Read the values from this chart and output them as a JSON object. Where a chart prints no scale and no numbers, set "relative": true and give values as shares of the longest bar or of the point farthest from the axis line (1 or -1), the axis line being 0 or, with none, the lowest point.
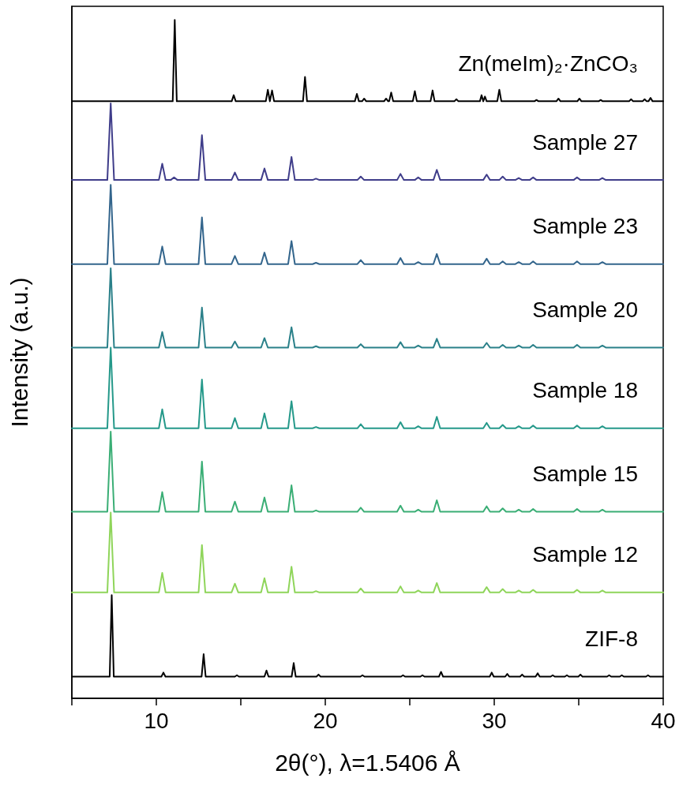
{
  "chart_data": {
    "type": "line",
    "relative": true,
    "xlabel": "2θ(°), λ=1.5406 Å",
    "ylabel": "Intensity (a.u.)",
    "xlim": [
      5,
      40
    ],
    "xticks": [
      {
        "value": 5,
        "label": null
      },
      10,
      {
        "value": 15,
        "label": null
      },
      20,
      {
        "value": 25,
        "label": null
      },
      30,
      {
        "value": 35,
        "label": null
      },
      40
    ],
    "legend": false,
    "grid": false,
    "marker": "none",
    "line_style": "solid",
    "series": [
      {
        "name": "Zn(meIm)₂·ZnCO₃",
        "color": "#000000",
        "x": [
          5,
          10.97,
          11.09,
          11.21,
          14.46,
          14.58,
          14.7,
          16.48,
          16.6,
          16.72,
          16.73,
          16.85,
          16.97,
          18.68,
          18.8,
          18.92,
          21.75,
          21.87,
          21.99,
          22.18,
          22.3,
          22.42,
          23.48,
          23.6,
          23.72,
          23.78,
          23.9,
          24.02,
          25.18,
          25.3,
          25.42,
          26.23,
          26.35,
          26.47,
          27.64,
          27.76,
          27.88,
          29.15,
          29.25,
          29.35,
          29.36,
          29.45,
          29.55,
          30.18,
          30.3,
          30.42,
          32.38,
          32.5,
          32.62,
          33.68,
          33.8,
          33.92,
          34.92,
          35.04,
          35.16,
          36.18,
          36.3,
          36.42,
          37.98,
          38.1,
          38.22,
          38.78,
          38.9,
          39.02,
          39.13,
          39.25,
          39.37,
          40
        ],
        "values": [
          0.88,
          0.88,
          1.0,
          0.88,
          0.88,
          0.889,
          0.88,
          0.88,
          0.897,
          0.88,
          0.88,
          0.896,
          0.88,
          0.88,
          0.916,
          0.88,
          0.88,
          0.891,
          0.88,
          0.88,
          0.884,
          0.88,
          0.88,
          0.884,
          0.88,
          0.88,
          0.893,
          0.88,
          0.88,
          0.895,
          0.88,
          0.88,
          0.896,
          0.88,
          0.88,
          0.883,
          0.88,
          0.88,
          0.889,
          0.88,
          0.88,
          0.887,
          0.88,
          0.88,
          0.897,
          0.88,
          0.88,
          0.882,
          0.88,
          0.88,
          0.884,
          0.88,
          0.88,
          0.884,
          0.88,
          0.88,
          0.882,
          0.88,
          0.88,
          0.883,
          0.88,
          0.88,
          0.883,
          0.88,
          0.88,
          0.885,
          0.88,
          0.88
        ]
      },
      {
        "name": "Sample 27",
        "color": "#3f3d8a",
        "x": [
          5,
          7.1,
          7.3,
          7.5,
          10.15,
          10.35,
          10.55,
          10.85,
          11.05,
          11.25,
          12.5,
          12.7,
          12.9,
          14.45,
          14.65,
          14.85,
          16.2,
          16.4,
          16.6,
          17.8,
          18.0,
          18.2,
          19.25,
          19.45,
          19.65,
          21.9,
          22.1,
          22.3,
          24.25,
          24.45,
          24.65,
          25.3,
          25.5,
          25.7,
          26.4,
          26.6,
          26.8,
          29.35,
          29.55,
          29.75,
          30.3,
          30.5,
          30.7,
          31.25,
          31.45,
          31.65,
          32.1,
          32.3,
          32.5,
          34.7,
          34.9,
          35.1,
          36.2,
          36.4,
          36.6,
          40
        ],
        "values": [
          0.764,
          0.764,
          0.877,
          0.764,
          0.764,
          0.788,
          0.764,
          0.764,
          0.768,
          0.764,
          0.764,
          0.83,
          0.764,
          0.764,
          0.775,
          0.764,
          0.764,
          0.781,
          0.764,
          0.764,
          0.798,
          0.764,
          0.764,
          0.766,
          0.764,
          0.764,
          0.769,
          0.764,
          0.764,
          0.773,
          0.764,
          0.764,
          0.768,
          0.764,
          0.764,
          0.779,
          0.764,
          0.764,
          0.772,
          0.764,
          0.764,
          0.769,
          0.764,
          0.764,
          0.767,
          0.764,
          0.764,
          0.768,
          0.764,
          0.764,
          0.768,
          0.764,
          0.764,
          0.767,
          0.764,
          0.764
        ]
      },
      {
        "name": "Sample 23",
        "color": "#33658c",
        "x": [
          5,
          7.1,
          7.3,
          7.5,
          10.15,
          10.35,
          10.55,
          12.5,
          12.7,
          12.9,
          14.45,
          14.65,
          14.85,
          16.2,
          16.4,
          16.6,
          17.8,
          18.0,
          18.2,
          19.25,
          19.45,
          19.65,
          21.9,
          22.1,
          22.3,
          24.25,
          24.45,
          24.65,
          25.3,
          25.5,
          25.7,
          26.4,
          26.6,
          26.8,
          29.35,
          29.55,
          29.75,
          30.3,
          30.5,
          30.7,
          31.25,
          31.45,
          31.65,
          32.1,
          32.3,
          32.5,
          34.7,
          34.9,
          35.1,
          36.2,
          36.4,
          36.6,
          40
        ],
        "values": [
          0.64,
          0.64,
          0.757,
          0.64,
          0.64,
          0.666,
          0.64,
          0.64,
          0.709,
          0.64,
          0.64,
          0.652,
          0.64,
          0.64,
          0.657,
          0.64,
          0.64,
          0.674,
          0.64,
          0.64,
          0.642,
          0.64,
          0.64,
          0.646,
          0.64,
          0.64,
          0.649,
          0.64,
          0.64,
          0.643,
          0.64,
          0.64,
          0.655,
          0.64,
          0.64,
          0.648,
          0.64,
          0.64,
          0.644,
          0.64,
          0.64,
          0.643,
          0.64,
          0.64,
          0.644,
          0.64,
          0.64,
          0.644,
          0.64,
          0.64,
          0.643,
          0.64,
          0.64
        ]
      },
      {
        "name": "Sample 20",
        "color": "#2a8089",
        "x": [
          5,
          7.1,
          7.3,
          7.5,
          10.15,
          10.35,
          10.55,
          12.5,
          12.7,
          12.9,
          14.45,
          14.65,
          14.85,
          16.2,
          16.4,
          16.6,
          17.8,
          18.0,
          18.2,
          19.25,
          19.45,
          19.65,
          21.9,
          22.1,
          22.3,
          24.25,
          24.45,
          24.65,
          25.3,
          25.5,
          25.7,
          26.4,
          26.6,
          26.8,
          29.35,
          29.55,
          29.75,
          30.3,
          30.5,
          30.7,
          31.25,
          31.45,
          31.65,
          32.1,
          32.3,
          32.5,
          34.7,
          34.9,
          35.1,
          36.2,
          36.4,
          36.6,
          40
        ],
        "values": [
          0.517,
          0.517,
          0.634,
          0.517,
          0.517,
          0.54,
          0.517,
          0.517,
          0.576,
          0.517,
          0.517,
          0.526,
          0.517,
          0.517,
          0.531,
          0.517,
          0.517,
          0.547,
          0.517,
          0.517,
          0.519,
          0.517,
          0.517,
          0.522,
          0.517,
          0.517,
          0.525,
          0.517,
          0.517,
          0.52,
          0.517,
          0.517,
          0.53,
          0.517,
          0.517,
          0.524,
          0.517,
          0.517,
          0.521,
          0.517,
          0.517,
          0.52,
          0.517,
          0.517,
          0.521,
          0.517,
          0.517,
          0.521,
          0.517,
          0.517,
          0.52,
          0.517,
          0.517
        ]
      },
      {
        "name": "Sample 18",
        "color": "#25998a",
        "x": [
          5,
          7.1,
          7.3,
          7.5,
          10.15,
          10.35,
          10.55,
          12.5,
          12.7,
          12.9,
          14.45,
          14.65,
          14.85,
          16.2,
          16.4,
          16.6,
          17.8,
          18.0,
          18.2,
          19.25,
          19.45,
          19.65,
          21.9,
          22.1,
          22.3,
          24.25,
          24.45,
          24.65,
          25.3,
          25.5,
          25.7,
          26.4,
          26.6,
          26.8,
          29.35,
          29.55,
          29.75,
          30.3,
          30.5,
          30.7,
          31.25,
          31.45,
          31.65,
          32.1,
          32.3,
          32.5,
          34.7,
          34.9,
          35.1,
          36.2,
          36.4,
          36.6,
          40
        ],
        "values": [
          0.398,
          0.398,
          0.517,
          0.398,
          0.398,
          0.426,
          0.398,
          0.398,
          0.47,
          0.398,
          0.398,
          0.413,
          0.398,
          0.398,
          0.42,
          0.398,
          0.398,
          0.438,
          0.398,
          0.398,
          0.4,
          0.398,
          0.398,
          0.404,
          0.398,
          0.398,
          0.407,
          0.398,
          0.398,
          0.401,
          0.398,
          0.398,
          0.415,
          0.398,
          0.398,
          0.406,
          0.398,
          0.398,
          0.403,
          0.398,
          0.398,
          0.401,
          0.398,
          0.398,
          0.402,
          0.398,
          0.398,
          0.402,
          0.398,
          0.398,
          0.401,
          0.398,
          0.398
        ]
      },
      {
        "name": "Sample 15",
        "color": "#3aae75",
        "x": [
          5,
          7.1,
          7.3,
          7.5,
          10.15,
          10.35,
          10.55,
          12.5,
          12.7,
          12.9,
          14.45,
          14.65,
          14.85,
          16.2,
          16.4,
          16.6,
          17.8,
          18.0,
          18.2,
          19.25,
          19.45,
          19.65,
          21.9,
          22.1,
          22.3,
          24.25,
          24.45,
          24.65,
          25.3,
          25.5,
          25.7,
          26.4,
          26.6,
          26.8,
          29.35,
          29.55,
          29.75,
          30.3,
          30.5,
          30.7,
          31.25,
          31.45,
          31.65,
          32.1,
          32.3,
          32.5,
          34.7,
          34.9,
          35.1,
          36.2,
          36.4,
          36.6,
          40
        ],
        "values": [
          0.275,
          0.275,
          0.393,
          0.275,
          0.275,
          0.304,
          0.275,
          0.275,
          0.349,
          0.275,
          0.275,
          0.29,
          0.275,
          0.275,
          0.296,
          0.275,
          0.275,
          0.314,
          0.275,
          0.275,
          0.277,
          0.275,
          0.275,
          0.281,
          0.275,
          0.275,
          0.284,
          0.275,
          0.275,
          0.278,
          0.275,
          0.275,
          0.292,
          0.275,
          0.275,
          0.283,
          0.275,
          0.275,
          0.28,
          0.275,
          0.275,
          0.278,
          0.275,
          0.275,
          0.279,
          0.275,
          0.275,
          0.279,
          0.275,
          0.275,
          0.278,
          0.275,
          0.275
        ]
      },
      {
        "name": "Sample 12",
        "color": "#8fd55a",
        "x": [
          5,
          7.1,
          7.3,
          7.5,
          10.15,
          10.35,
          10.55,
          12.5,
          12.7,
          12.9,
          14.45,
          14.65,
          14.85,
          16.2,
          16.4,
          16.6,
          17.8,
          18.0,
          18.2,
          19.25,
          19.45,
          19.65,
          21.9,
          22.1,
          22.3,
          24.25,
          24.45,
          24.65,
          25.3,
          25.5,
          25.7,
          26.4,
          26.6,
          26.8,
          29.35,
          29.55,
          29.75,
          30.3,
          30.5,
          30.7,
          31.25,
          31.45,
          31.65,
          32.1,
          32.3,
          32.5,
          34.7,
          34.9,
          35.1,
          36.2,
          36.4,
          36.6,
          40
        ],
        "values": [
          0.156,
          0.156,
          0.274,
          0.156,
          0.156,
          0.185,
          0.156,
          0.156,
          0.226,
          0.156,
          0.156,
          0.169,
          0.156,
          0.156,
          0.177,
          0.156,
          0.156,
          0.194,
          0.156,
          0.156,
          0.158,
          0.156,
          0.156,
          0.162,
          0.156,
          0.156,
          0.165,
          0.156,
          0.156,
          0.159,
          0.156,
          0.156,
          0.17,
          0.156,
          0.156,
          0.164,
          0.156,
          0.156,
          0.161,
          0.156,
          0.156,
          0.159,
          0.156,
          0.156,
          0.16,
          0.156,
          0.156,
          0.16,
          0.156,
          0.156,
          0.159,
          0.156,
          0.156
        ]
      },
      {
        "name": "ZIF-8",
        "color": "#000000",
        "x": [
          5,
          7.24,
          7.36,
          7.48,
          10.3,
          10.42,
          10.54,
          12.68,
          12.8,
          12.92,
          14.65,
          14.77,
          14.89,
          16.4,
          16.52,
          16.64,
          18.01,
          18.13,
          18.25,
          19.48,
          19.6,
          19.72,
          22.08,
          22.2,
          22.32,
          24.48,
          24.6,
          24.72,
          25.63,
          25.75,
          25.87,
          26.73,
          26.85,
          26.97,
          29.73,
          29.85,
          29.97,
          30.65,
          30.77,
          30.89,
          31.53,
          31.65,
          31.77,
          32.45,
          32.57,
          32.69,
          33.34,
          33.46,
          33.58,
          34.18,
          34.3,
          34.42,
          34.98,
          35.1,
          35.22,
          36.68,
          36.8,
          36.92,
          37.43,
          37.55,
          37.67,
          38.98,
          39.1,
          39.22,
          40
        ],
        "values": [
          0.032,
          0.032,
          0.152,
          0.032,
          0.032,
          0.038,
          0.032,
          0.032,
          0.065,
          0.032,
          0.032,
          0.034,
          0.032,
          0.032,
          0.041,
          0.032,
          0.032,
          0.052,
          0.032,
          0.032,
          0.035,
          0.032,
          0.032,
          0.034,
          0.032,
          0.032,
          0.034,
          0.032,
          0.032,
          0.034,
          0.032,
          0.032,
          0.039,
          0.032,
          0.032,
          0.038,
          0.032,
          0.032,
          0.036,
          0.032,
          0.032,
          0.035,
          0.032,
          0.032,
          0.037,
          0.032,
          0.032,
          0.034,
          0.032,
          0.032,
          0.034,
          0.032,
          0.032,
          0.035,
          0.032,
          0.032,
          0.034,
          0.032,
          0.032,
          0.034,
          0.032,
          0.032,
          0.034,
          0.032,
          0.032
        ]
      }
    ]
  }
}
